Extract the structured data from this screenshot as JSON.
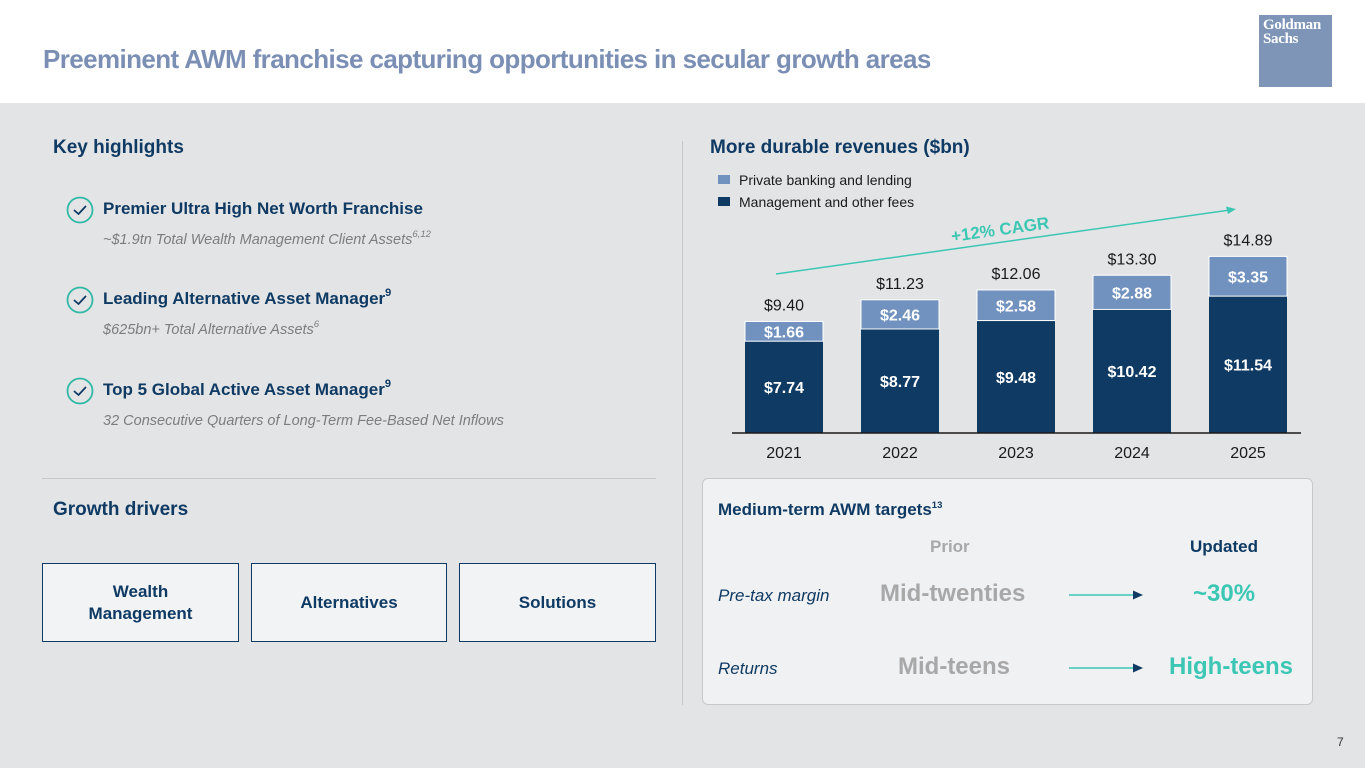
{
  "header": {
    "title": "Preeminent AWM franchise capturing opportunities in secular growth areas",
    "logo_text": "Goldman Sachs"
  },
  "highlights": {
    "section_title": "Key highlights",
    "items": [
      {
        "icon": "check-circle-icon",
        "title": "Premier Ultra High Net Worth Franchise",
        "title_sup": "",
        "subtitle": "~$1.9tn Total Wealth Management Client Assets",
        "subtitle_sup": "6,12"
      },
      {
        "icon": "check-circle-icon",
        "title": "Leading Alternative Asset Manager",
        "title_sup": "9",
        "subtitle": "$625bn+ Total Alternative Assets",
        "subtitle_sup": "6"
      },
      {
        "icon": "check-circle-icon",
        "title": "Top 5 Global Active Asset Manager",
        "title_sup": "9",
        "subtitle": "32 Consecutive Quarters of Long-Term Fee-Based Net Inflows",
        "subtitle_sup": ""
      }
    ]
  },
  "growth_drivers": {
    "section_title": "Growth drivers",
    "items": [
      "Wealth Management",
      "Alternatives",
      "Solutions"
    ]
  },
  "revenues": {
    "section_title": "More durable revenues ($bn)",
    "cagr_label": "+12% CAGR"
  },
  "chart_data": {
    "type": "bar",
    "stacked": true,
    "categories": [
      "2021",
      "2022",
      "2023",
      "2024",
      "2025"
    ],
    "series": [
      {
        "name": "Management and other fees",
        "values": [
          7.74,
          8.77,
          9.48,
          10.42,
          11.54
        ],
        "labels": [
          "$7.74",
          "$8.77",
          "$9.48",
          "$10.42",
          "$11.54"
        ],
        "color": "#0f3a63"
      },
      {
        "name": "Private banking and lending",
        "values": [
          1.66,
          2.46,
          2.58,
          2.88,
          3.35
        ],
        "labels": [
          "$1.66",
          "$2.46",
          "$2.58",
          "$2.88",
          "$3.35"
        ],
        "color": "#7191bf"
      }
    ],
    "totals": [
      9.4,
      11.23,
      12.06,
      13.3,
      14.89
    ],
    "total_labels": [
      "$9.40",
      "$11.23",
      "$12.06",
      "$13.30",
      "$14.89"
    ],
    "legend": [
      "Private banking and lending",
      "Management and other fees"
    ],
    "legend_position": "top-left",
    "annotation": "+12% CAGR",
    "grid": false,
    "ylim": [
      0,
      16
    ],
    "title": "More durable revenues ($bn)",
    "xlabel": "",
    "ylabel": ""
  },
  "targets": {
    "title": "Medium-term AWM targets",
    "title_sup": "13",
    "col_prior": "Prior",
    "col_updated": "Updated",
    "rows": [
      {
        "label": "Pre-tax margin",
        "prior": "Mid-twenties",
        "updated": "~30%"
      },
      {
        "label": "Returns",
        "prior": "Mid-teens",
        "updated": "High-teens"
      }
    ]
  },
  "colors": {
    "navy": "#0f3a63",
    "light_blue": "#7191bf",
    "teal": "#3cc7b4",
    "title_blue": "#7b8fb5",
    "gray": "#a8a8a8"
  },
  "page_number": "7"
}
